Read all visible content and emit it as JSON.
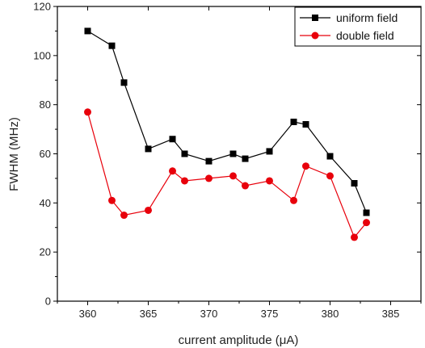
{
  "chart_data": {
    "type": "line",
    "xlabel": "current amplitude (μA)",
    "ylabel": "FWHM (MHz)",
    "xlim": [
      357.5,
      387.5
    ],
    "ylim": [
      0,
      120
    ],
    "x_ticks": [
      "360",
      "365",
      "370",
      "375",
      "380",
      "385"
    ],
    "y_ticks": [
      "0",
      "20",
      "40",
      "60",
      "80",
      "100",
      "120"
    ],
    "grid": false,
    "legend_position": "top-right",
    "series": [
      {
        "name": "uniform field",
        "color": "#000000",
        "marker": "square",
        "x": [
          360,
          362,
          363,
          365,
          367,
          368,
          370,
          372,
          373,
          375,
          377,
          378,
          380,
          382,
          383
        ],
        "y": [
          110,
          104,
          89,
          62,
          66,
          60,
          57,
          60,
          58,
          61,
          73,
          72,
          59,
          48,
          36
        ]
      },
      {
        "name": "double field",
        "color": "#e8000b",
        "marker": "circle",
        "x": [
          360,
          362,
          363,
          365,
          367,
          368,
          370,
          372,
          373,
          375,
          377,
          378,
          380,
          382,
          383
        ],
        "y": [
          77,
          41,
          35,
          37,
          53,
          49,
          50,
          51,
          47,
          49,
          41,
          55,
          51,
          26,
          32
        ]
      }
    ]
  }
}
